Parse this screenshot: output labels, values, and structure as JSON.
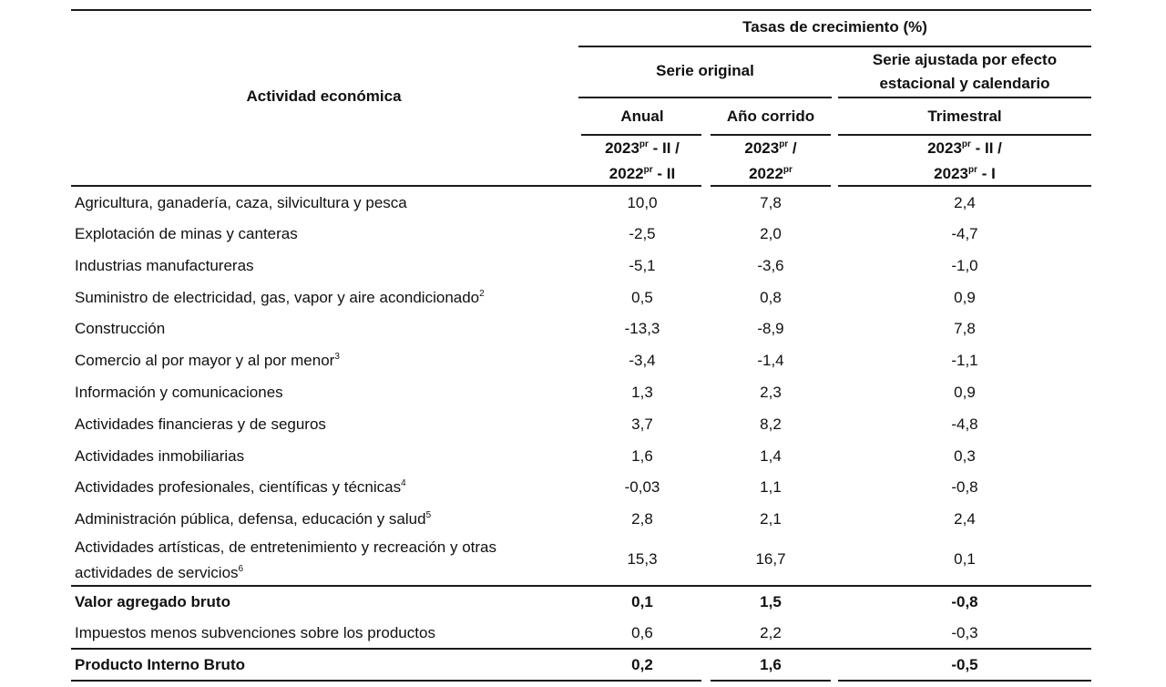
{
  "header": {
    "title": "Tasas de crecimiento (%)",
    "activity": "Actividad económica",
    "serie_original": "Serie original",
    "serie_ajustada_line1": "Serie ajustada por efecto",
    "serie_ajustada_line2": "estacional y calendario",
    "anual": "Anual",
    "anio_corrido": "Año corrido",
    "trimestral": "Trimestral",
    "periods": {
      "anual": {
        "a": "2023",
        "a_sup": "pr",
        "a_suffix": " - II /",
        "b": "2022",
        "b_sup": "pr",
        "b_suffix": " - II"
      },
      "anio_corrido": {
        "a": "2023",
        "a_sup": "pr",
        "a_suffix": " /",
        "b": "2022",
        "b_sup": "pr",
        "b_suffix": ""
      },
      "trimestral": {
        "a": "2023",
        "a_sup": "pr",
        "a_suffix": " - II /",
        "b": "2023",
        "b_sup": "pr",
        "b_suffix": " - I"
      }
    }
  },
  "rows": [
    {
      "label": "Agricultura, ganadería, caza, silvicultura y pesca",
      "note": "",
      "anual": "10,0",
      "corrido": "7,8",
      "trimestral": "2,4"
    },
    {
      "label": "Explotación de minas y canteras",
      "note": "",
      "anual": "-2,5",
      "corrido": "2,0",
      "trimestral": "-4,7"
    },
    {
      "label": "Industrias manufactureras",
      "note": "",
      "anual": "-5,1",
      "corrido": "-3,6",
      "trimestral": "-1,0"
    },
    {
      "label": "Suministro de electricidad, gas, vapor y aire acondicionado",
      "note": "2",
      "anual": "0,5",
      "corrido": "0,8",
      "trimestral": "0,9"
    },
    {
      "label": "Construcción",
      "note": "",
      "anual": "-13,3",
      "corrido": "-8,9",
      "trimestral": "7,8"
    },
    {
      "label": "Comercio al por mayor y al por menor",
      "note": "3",
      "anual": "-3,4",
      "corrido": "-1,4",
      "trimestral": "-1,1"
    },
    {
      "label": "Información y comunicaciones",
      "note": "",
      "anual": "1,3",
      "corrido": "2,3",
      "trimestral": "0,9"
    },
    {
      "label": "Actividades financieras y de seguros",
      "note": "",
      "anual": "3,7",
      "corrido": "8,2",
      "trimestral": "-4,8"
    },
    {
      "label": "Actividades inmobiliarias",
      "note": "",
      "anual": "1,6",
      "corrido": "1,4",
      "trimestral": "0,3"
    },
    {
      "label": "Actividades profesionales, científicas y técnicas",
      "note": "4",
      "anual": "-0,03",
      "corrido": "1,1",
      "trimestral": "-0,8"
    },
    {
      "label": "Administración pública, defensa, educación y salud",
      "note": "5",
      "anual": "2,8",
      "corrido": "2,1",
      "trimestral": "2,4"
    },
    {
      "label": "Actividades artísticas, de entretenimiento y recreación y otras",
      "label2": "actividades de servicios",
      "note": "6",
      "anual": "15,3",
      "corrido": "16,7",
      "trimestral": "0,1"
    },
    {
      "label": "Valor agregado bruto",
      "note": "",
      "anual": "0,1",
      "corrido": "1,5",
      "trimestral": "-0,8",
      "bold": true
    },
    {
      "label": "Impuestos menos subvenciones sobre los productos",
      "note": "",
      "anual": "0,6",
      "corrido": "2,2",
      "trimestral": "-0,3"
    },
    {
      "label": "Producto Interno Bruto",
      "note": "",
      "anual": "0,2",
      "corrido": "1,6",
      "trimestral": "-0,5",
      "bold": true
    }
  ]
}
